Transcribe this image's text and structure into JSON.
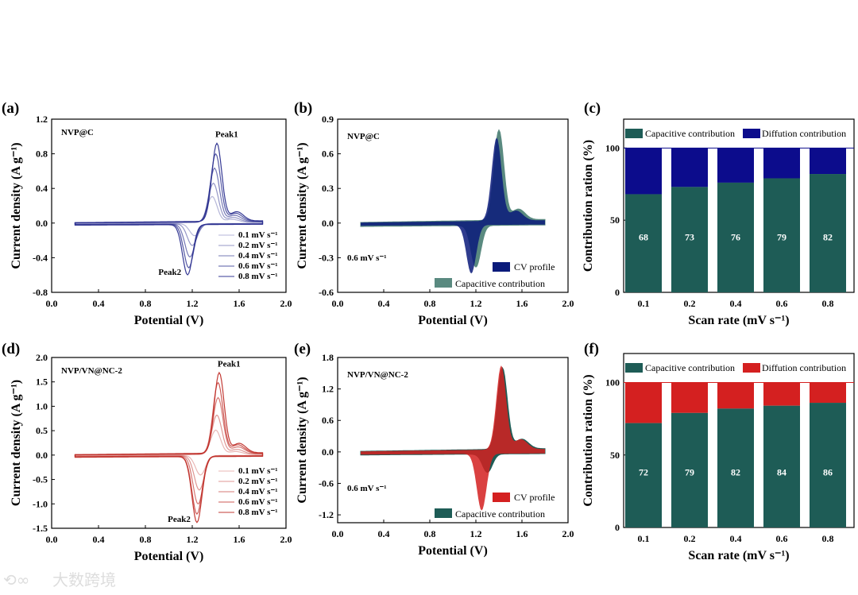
{
  "watermark": "大数跨境",
  "chart_data": [
    {
      "id": "a",
      "type": "line",
      "panel_label": "(a)",
      "sample": "NVP@C",
      "xlabel": "Potential (V)",
      "ylabel": "Current density (A g⁻¹)",
      "xlim": [
        0,
        2.0
      ],
      "ylim": [
        -0.8,
        1.2
      ],
      "xticks": [
        "0.0",
        "0.4",
        "0.8",
        "1.2",
        "1.6",
        "2.0"
      ],
      "yticks": [
        "-0.8",
        "-0.4",
        "0.0",
        "0.4",
        "0.8",
        "1.2"
      ],
      "annotations": [
        "Peak1",
        "Peak2"
      ],
      "color": "#2b2f8f",
      "series": [
        {
          "name": "0.1 mV s⁻¹",
          "anodic_peak": [
            1.37,
            0.3
          ],
          "cathodic_peak": [
            1.22,
            -0.14
          ]
        },
        {
          "name": "0.2 mV s⁻¹",
          "anodic_peak": [
            1.38,
            0.45
          ],
          "cathodic_peak": [
            1.2,
            -0.25
          ]
        },
        {
          "name": "0.4 mV s⁻¹",
          "anodic_peak": [
            1.39,
            0.62
          ],
          "cathodic_peak": [
            1.18,
            -0.38
          ]
        },
        {
          "name": "0.6 mV s⁻¹",
          "anodic_peak": [
            1.4,
            0.78
          ],
          "cathodic_peak": [
            1.17,
            -0.5
          ]
        },
        {
          "name": "0.8 mV s⁻¹",
          "anodic_peak": [
            1.41,
            0.9
          ],
          "cathodic_peak": [
            1.16,
            -0.58
          ]
        }
      ]
    },
    {
      "id": "b",
      "type": "area",
      "panel_label": "(b)",
      "sample": "NVP@C",
      "rate_text": "0.6 mV s⁻¹",
      "xlabel": "Potential (V)",
      "ylabel": "Current density (A g⁻¹)",
      "xlim": [
        0,
        2.0
      ],
      "ylim": [
        -0.6,
        0.9
      ],
      "xticks": [
        "0.0",
        "0.4",
        "0.8",
        "1.2",
        "1.6",
        "2.0"
      ],
      "yticks": [
        "-0.6",
        "-0.3",
        "0.0",
        "0.3",
        "0.6",
        "0.9"
      ],
      "series": [
        {
          "name": "CV profile",
          "color": "#0a1a7a",
          "anodic_peak": [
            1.38,
            0.72
          ],
          "cathodic_peak": [
            1.16,
            -0.42
          ]
        },
        {
          "name": "Capacitive contribution",
          "color": "#5a8a80",
          "anodic_peak": [
            1.4,
            0.78
          ],
          "cathodic_peak": [
            1.2,
            -0.36
          ]
        }
      ]
    },
    {
      "id": "c",
      "type": "bar",
      "panel_label": "(c)",
      "xlabel": "Scan rate (mV s⁻¹)",
      "ylabel": "Contribution ration (%)",
      "ylim": [
        0,
        120
      ],
      "yticks": [
        "0",
        "50",
        "100"
      ],
      "categories": [
        "0.1",
        "0.2",
        "0.4",
        "0.6",
        "0.8"
      ],
      "series": [
        {
          "name": "Capacitive contribution",
          "color": "#1e5c56",
          "values": [
            68,
            73,
            76,
            79,
            82
          ]
        },
        {
          "name": "Diffution contribution",
          "color": "#0c0c8c",
          "values": [
            32,
            27,
            24,
            21,
            18
          ]
        }
      ]
    },
    {
      "id": "d",
      "type": "line",
      "panel_label": "(d)",
      "sample": "NVP/VN@NC-2",
      "xlabel": "Potential (V)",
      "ylabel": "Current density (A g⁻¹)",
      "xlim": [
        0,
        2.0
      ],
      "ylim": [
        -1.5,
        2.0
      ],
      "xticks": [
        "0.0",
        "0.4",
        "0.8",
        "1.2",
        "1.6",
        "2.0"
      ],
      "yticks": [
        "-1.5",
        "-1.0",
        "-0.5",
        "0.0",
        "0.5",
        "1.0",
        "1.5",
        "2.0"
      ],
      "annotations": [
        "Peak1",
        "Peak2"
      ],
      "color": "#c0302a",
      "series": [
        {
          "name": "0.1 mV s⁻¹",
          "anodic_peak": [
            1.4,
            0.5
          ],
          "cathodic_peak": [
            1.27,
            -0.4
          ]
        },
        {
          "name": "0.2 mV s⁻¹",
          "anodic_peak": [
            1.41,
            0.8
          ],
          "cathodic_peak": [
            1.26,
            -0.7
          ]
        },
        {
          "name": "0.4 mV s⁻¹",
          "anodic_peak": [
            1.42,
            1.15
          ],
          "cathodic_peak": [
            1.25,
            -0.98
          ]
        },
        {
          "name": "0.6 mV s⁻¹",
          "anodic_peak": [
            1.42,
            1.45
          ],
          "cathodic_peak": [
            1.24,
            -1.18
          ]
        },
        {
          "name": "0.8 mV s⁻¹",
          "anodic_peak": [
            1.43,
            1.65
          ],
          "cathodic_peak": [
            1.24,
            -1.35
          ]
        }
      ]
    },
    {
      "id": "e",
      "type": "area",
      "panel_label": "(e)",
      "sample": "NVP/VN@NC-2",
      "rate_text": "0.6 mV s⁻¹",
      "xlabel": "Potential (V)",
      "ylabel": "Current density (A g⁻¹)",
      "xlim": [
        0,
        2.0
      ],
      "ylim": [
        -1.35,
        1.8
      ],
      "xticks": [
        "0.0",
        "0.4",
        "0.8",
        "1.2",
        "1.6",
        "2.0"
      ],
      "yticks": [
        "-1.2",
        "-0.6",
        "0.0",
        "0.6",
        "1.2",
        "1.8"
      ],
      "series": [
        {
          "name": "CV profile",
          "color": "#d42020",
          "anodic_peak": [
            1.42,
            1.6
          ],
          "cathodic_peak": [
            1.25,
            -1.08
          ]
        },
        {
          "name": "Capacitive contribution",
          "color": "#1e5c56",
          "anodic_peak": [
            1.43,
            1.55
          ],
          "cathodic_peak": [
            1.3,
            -0.35
          ]
        }
      ]
    },
    {
      "id": "f",
      "type": "bar",
      "panel_label": "(f)",
      "xlabel": "Scan rate (mV s⁻¹)",
      "ylabel": "Contribution ration (%)",
      "ylim": [
        0,
        120
      ],
      "yticks": [
        "0",
        "50",
        "100"
      ],
      "categories": [
        "0.1",
        "0.2",
        "0.4",
        "0.6",
        "0.8"
      ],
      "series": [
        {
          "name": "Capacitive contribution",
          "color": "#1e5c56",
          "values": [
            72,
            79,
            82,
            84,
            86
          ]
        },
        {
          "name": "Diffution contribution",
          "color": "#d42020",
          "values": [
            28,
            21,
            18,
            16,
            14
          ]
        }
      ]
    }
  ]
}
